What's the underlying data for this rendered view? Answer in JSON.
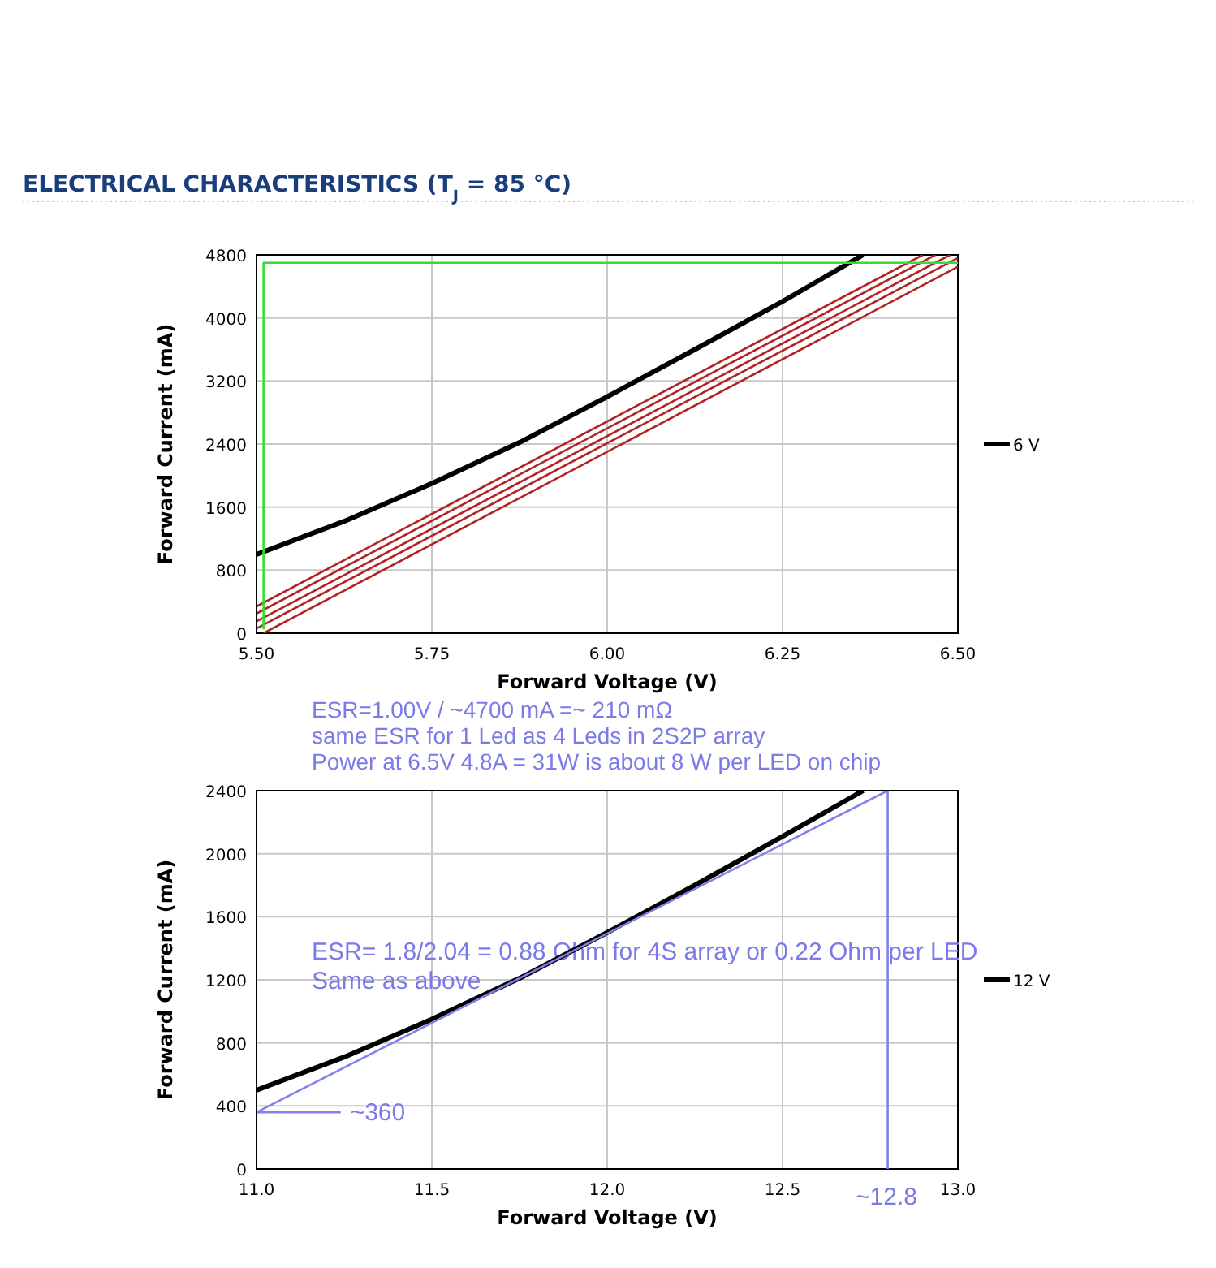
{
  "chart_data": [
    {
      "type": "line",
      "title": "ELECTRICAL CHARACTERISTICS (T$_{J}$ = 85 °C)",
      "xlabel": "Forward Voltage (V)",
      "ylabel": "Forward Current (mA)",
      "xlim": [
        5.5,
        6.5
      ],
      "xticks": [
        {
          "value": 5.5,
          "label": "5.50"
        },
        5.75,
        {
          "value": 6,
          "label": "6.00"
        },
        6.25,
        {
          "value": 6.5,
          "label": "6.50"
        }
      ],
      "ylim": [
        0,
        4800
      ],
      "yticks": [
        0,
        800,
        1600,
        2400,
        3200,
        4000,
        4800
      ],
      "grid": true,
      "legend": "right",
      "marker": "none",
      "series": [
        {
          "name": "6 V",
          "color": "#000000",
          "x": [
            5.5,
            5.625,
            5.75,
            5.875,
            6.0,
            6.125,
            6.25,
            6.365
          ],
          "values": [
            1000,
            1420,
            1900,
            2420,
            3000,
            3600,
            4210,
            4800
          ]
        },
        {
          "color": "#b22222",
          "x": [
            5.5,
            6.45
          ],
          "values": [
            340,
            4800
          ]
        },
        {
          "color": "#b22222",
          "x": [
            5.5,
            6.468
          ],
          "values": [
            250,
            4800
          ]
        },
        {
          "color": "#b22222",
          "x": [
            5.5,
            6.489
          ],
          "values": [
            150,
            4800
          ]
        },
        {
          "color": "#b22222",
          "x": [
            5.5,
            6.5
          ],
          "values": [
            60,
            4760
          ]
        },
        {
          "color": "#b22222",
          "x": [
            5.51,
            6.5
          ],
          "values": [
            0,
            4650
          ]
        },
        {
          "color": "#33dd33",
          "x": [
            5.51,
            5.51,
            6.5
          ],
          "values": [
            50,
            4700,
            4700
          ]
        }
      ],
      "annotations": [
        "ESR=1.00V / ~4700 mA =~ 210 mΩ",
        "same ESR for 1 Led as 4 Leds in 2S2P array",
        "Power at 6.5V 4.8A = 31W is about 8 W per LED on chip"
      ]
    },
    {
      "type": "line",
      "xlabel": "Forward Voltage (V)",
      "ylabel": "Forward Current (mA)",
      "xlim": [
        11,
        13
      ],
      "xticks": [
        {
          "value": 11,
          "label": "11.0"
        },
        11.5,
        {
          "value": 12,
          "label": "12.0"
        },
        12.5,
        {
          "value": 13,
          "label": "13.0"
        }
      ],
      "ylim": [
        0,
        2400
      ],
      "yticks": [
        0,
        400,
        800,
        1200,
        1600,
        2000,
        2400
      ],
      "grid": true,
      "legend": "right",
      "marker": "none",
      "series": [
        {
          "name": "12 V",
          "color": "#000000",
          "x": [
            11.0,
            11.25,
            11.5,
            11.75,
            12.0,
            12.25,
            12.5,
            12.73
          ],
          "values": [
            500,
            710,
            950,
            1210,
            1500,
            1800,
            2110,
            2400
          ]
        },
        {
          "color": "#8080ee",
          "x": [
            11.0,
            12.8,
            12.8
          ],
          "values": [
            360,
            2400,
            0
          ]
        },
        {
          "color": "#8080ee",
          "x": [
            11.0,
            11.24
          ],
          "values": [
            360,
            360
          ]
        }
      ],
      "annotations": [
        "ESR= 1.8/2.04 = 0.88 Ohm for 4S array or 0.22 Ohm per LED",
        "Same as above",
        {
          "text": "~360",
          "x": 11.24,
          "y": 360
        },
        "~12.8"
      ]
    }
  ]
}
